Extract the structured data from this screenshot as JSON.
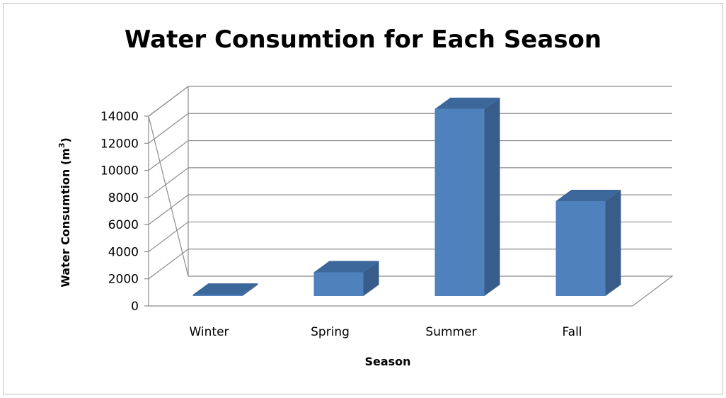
{
  "chart_data": {
    "type": "bar",
    "title": "Water Consumtion for Each Season",
    "xlabel": "Season",
    "ylabel": "Water Consumtion  (m",
    "ylabel_sup": "3",
    "ylabel_close": ")",
    "categories": [
      "Winter",
      "Spring",
      "Summer",
      "Fall"
    ],
    "values": [
      100,
      1750,
      13800,
      7000
    ],
    "ylim": [
      0,
      14000
    ],
    "yticks": [
      0,
      2000,
      4000,
      6000,
      8000,
      10000,
      12000,
      14000
    ],
    "grid": true,
    "legend": "none",
    "style": "3d-column",
    "colors": {
      "front": "#4f81bd",
      "side": "#385d8a",
      "top": "#3b679a"
    }
  }
}
